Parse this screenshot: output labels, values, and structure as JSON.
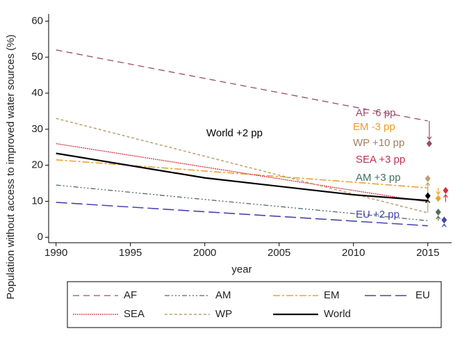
{
  "chart_data": {
    "type": "line",
    "y_label": "Population without access to improved water sources (%)",
    "x_label": "year",
    "x": [
      1990,
      2000,
      2010,
      2015
    ],
    "xlim": [
      1989.5,
      2016.6
    ],
    "xticks": [
      1990,
      1995,
      2000,
      2005,
      2010,
      2015
    ],
    "ylim": [
      -1.5,
      62
    ],
    "yticks": [
      0,
      10,
      20,
      30,
      40,
      50,
      60
    ],
    "series": [
      {
        "name": "AF",
        "color": "#9b4a6a",
        "values": [
          52,
          44.1,
          36.2,
          32.3
        ],
        "marker_x": 2015.1,
        "marker_y": 26
      },
      {
        "name": "AM",
        "color": "#4d6b5a",
        "values": [
          14.5,
          10.5,
          6.6,
          4.6
        ],
        "marker_x": 2015.7,
        "marker_y": 7
      },
      {
        "name": "EM",
        "color": "#f0a030",
        "values": [
          21.5,
          18.4,
          15.3,
          13.7
        ],
        "marker_x": 2015.7,
        "marker_y": 10.8
      },
      {
        "name": "EU",
        "color": "#4545b0",
        "values": [
          9.7,
          7.1,
          4.5,
          3.2
        ],
        "marker_x": 2016.1,
        "marker_y": 4.8
      },
      {
        "name": "SEA",
        "color": "#d03040",
        "values": [
          26,
          19.5,
          13.0,
          9.8
        ],
        "marker_x": 2016.2,
        "marker_y": 13
      },
      {
        "name": "WP",
        "color": "#b8a070",
        "values": [
          33,
          22.5,
          12.0,
          6.8
        ],
        "marker_x": 2015,
        "marker_y": 16.3
      },
      {
        "name": "World",
        "color": "#000000",
        "values": [
          23.3,
          16.5,
          11.8,
          10.2
        ],
        "marker_x": 2015,
        "marker_y": 11.5
      }
    ],
    "annotations": [
      {
        "text": "AF -6 pp",
        "color": "#9b4a6a"
      },
      {
        "text": "World +2 pp",
        "color": "#000000"
      },
      {
        "text": "EM -3 pp",
        "color": "#f09a20"
      },
      {
        "text": "WP +10 pp",
        "color": "#a08060"
      },
      {
        "text": "SEA +3 pp",
        "color": "#c03050"
      },
      {
        "text": "AM +3 pp",
        "color": "#3d7060"
      },
      {
        "text": "EU +2 pp",
        "color": "#4545b0"
      }
    ]
  }
}
